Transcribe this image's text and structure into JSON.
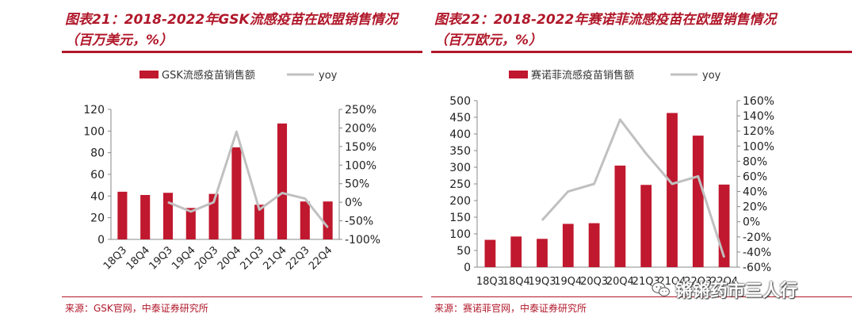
{
  "left": {
    "title": "图表21：2018-2022年GSK流感疫苗在欧盟销售情况",
    "subtitle": "（百万美元，%）",
    "source": "来源：GSK官网，中泰证券研究所"
  },
  "right": {
    "title": "图表22：2018-2022年赛诺菲流感疫苗在欧盟销售情况",
    "subtitle": "（百万欧元，%）",
    "source": "来源：赛诺菲官网，中泰证券研究所"
  },
  "watermark": {
    "text": "锵锵药市三人行",
    "icon": "wechat-icon"
  },
  "colors": {
    "bar": "#c0182e",
    "line": "#c0c0c0",
    "accent": "#b0182a",
    "axis": "#888888"
  },
  "chart_data": [
    {
      "type": "bar",
      "categories": [
        "18Q3",
        "18Q4",
        "19Q3",
        "19Q4",
        "20Q3",
        "20Q4",
        "21Q3",
        "21Q4",
        "22Q3",
        "22Q4"
      ],
      "series": [
        {
          "name": "GSK流感疫苗销售额",
          "type": "bar",
          "axis": "left",
          "values": [
            44,
            41,
            43,
            29,
            42,
            85,
            32,
            107,
            35,
            35
          ]
        },
        {
          "name": "yoy",
          "type": "line",
          "axis": "right",
          "values": [
            null,
            null,
            0,
            -25,
            0,
            190,
            -20,
            25,
            10,
            -68
          ]
        }
      ],
      "ylim": [
        0,
        120
      ],
      "yticks": [
        "0",
        "20",
        "40",
        "60",
        "80",
        "100",
        "120"
      ],
      "y2lim": [
        -100,
        250
      ],
      "y2ticks": [
        "-100%",
        "-50%",
        "0%",
        "50%",
        "100%",
        "150%",
        "200%",
        "250%"
      ],
      "legend": [
        "GSK流感疫苗销售额",
        "yoy"
      ],
      "legend_position": "top"
    },
    {
      "type": "bar",
      "categories": [
        "18Q3",
        "18Q4",
        "19Q3",
        "19Q4",
        "20Q3",
        "20Q4",
        "21Q3",
        "21Q4",
        "22Q3",
        "22Q4"
      ],
      "series": [
        {
          "name": "赛诺菲流感疫苗销售额",
          "type": "bar",
          "axis": "left",
          "values": [
            82,
            92,
            85,
            130,
            132,
            305,
            247,
            463,
            395,
            248
          ]
        },
        {
          "name": "yoy",
          "type": "line",
          "axis": "right",
          "values": [
            null,
            null,
            2,
            40,
            50,
            135,
            90,
            50,
            60,
            -47
          ]
        }
      ],
      "ylim": [
        0,
        500
      ],
      "yticks": [
        "0",
        "50",
        "100",
        "150",
        "200",
        "250",
        "300",
        "350",
        "400",
        "450",
        "500"
      ],
      "y2lim": [
        -60,
        160
      ],
      "y2ticks": [
        "-60%",
        "-40%",
        "-20%",
        "0%",
        "20%",
        "40%",
        "60%",
        "80%",
        "100%",
        "120%",
        "140%",
        "160%"
      ],
      "legend": [
        "赛诺菲流感疫苗销售额",
        "yoy"
      ],
      "legend_position": "top"
    }
  ]
}
